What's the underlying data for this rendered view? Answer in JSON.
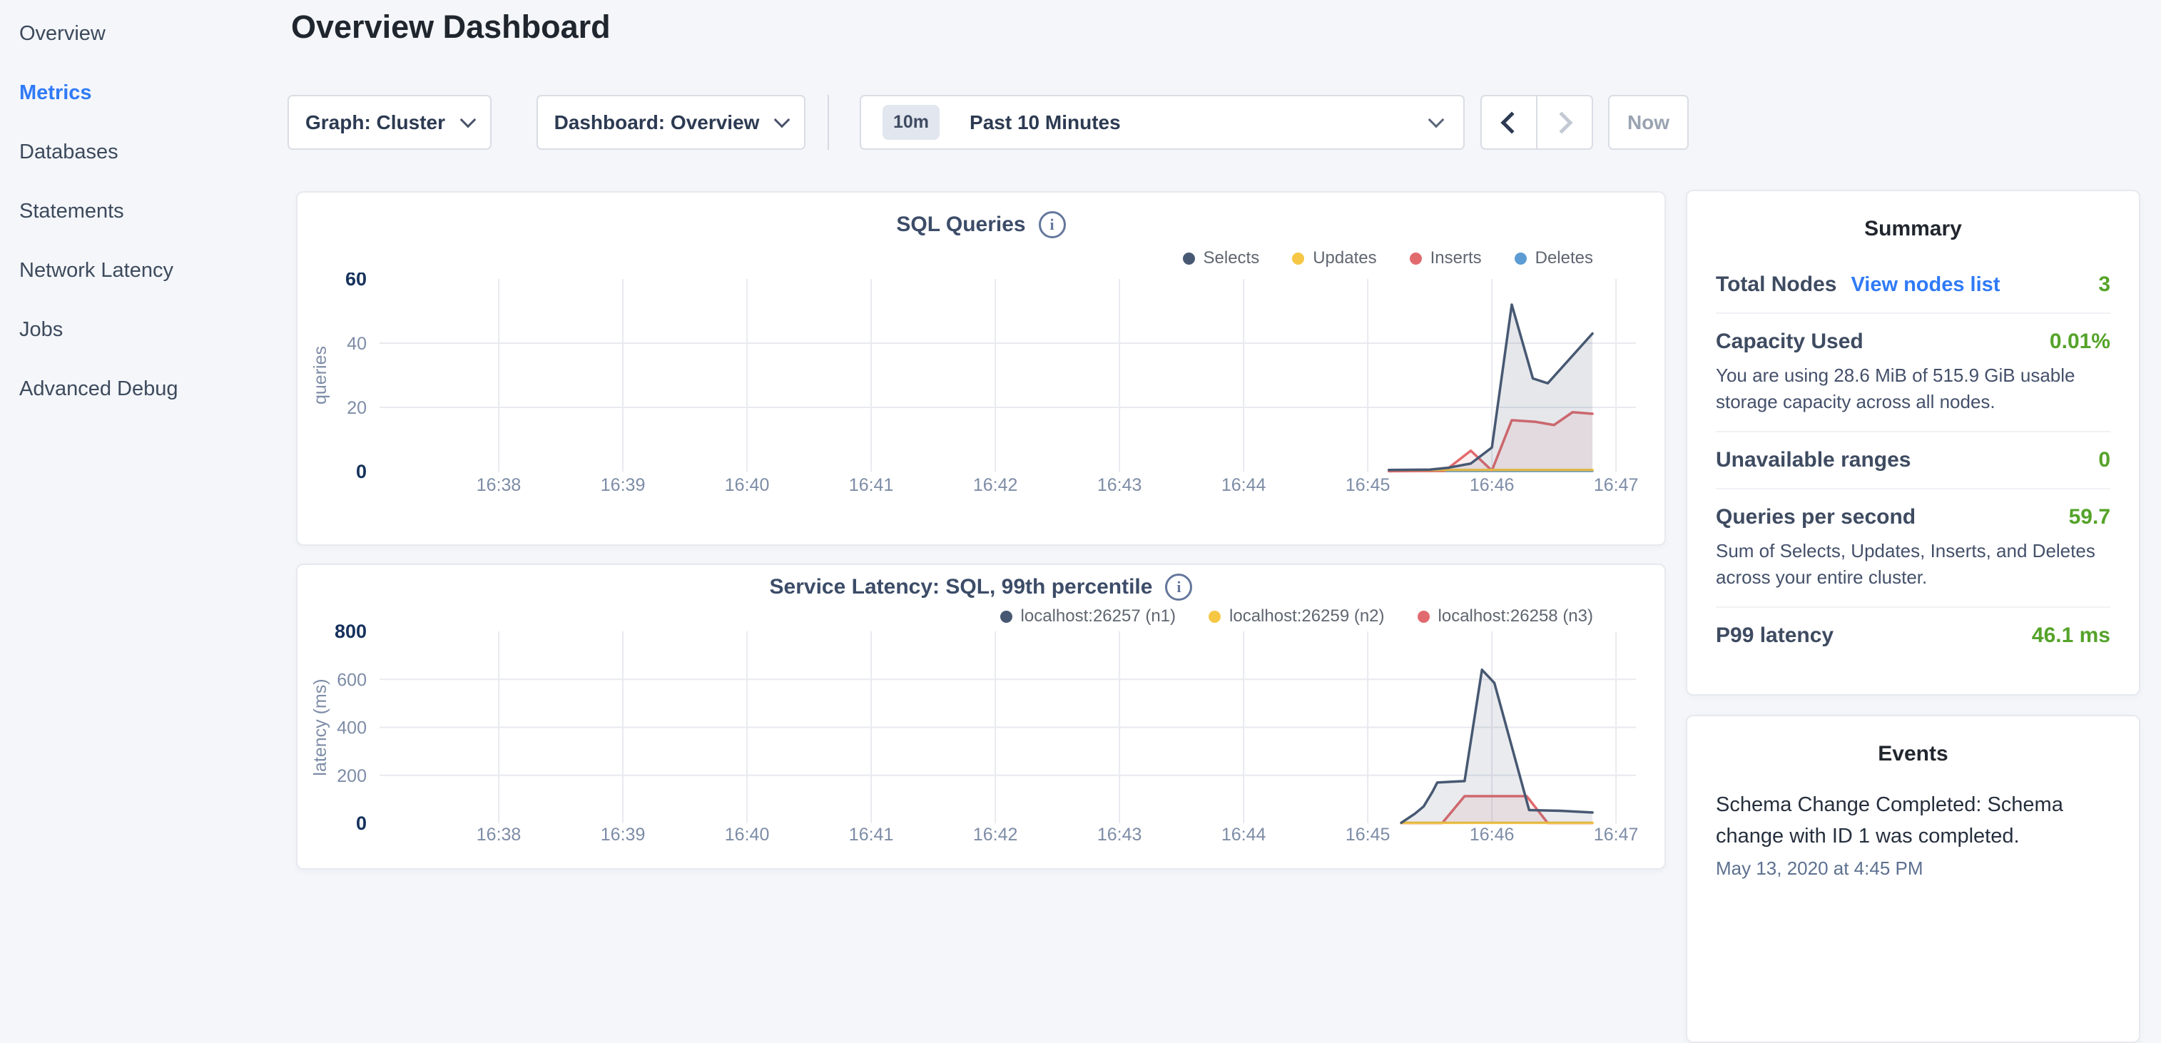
{
  "sidebar": {
    "items": [
      {
        "label": "Overview",
        "active": false
      },
      {
        "label": "Metrics",
        "active": true
      },
      {
        "label": "Databases",
        "active": false
      },
      {
        "label": "Statements",
        "active": false
      },
      {
        "label": "Network Latency",
        "active": false
      },
      {
        "label": "Jobs",
        "active": false
      },
      {
        "label": "Advanced Debug",
        "active": false
      }
    ]
  },
  "header": {
    "title": "Overview Dashboard"
  },
  "controls": {
    "graph_dropdown": {
      "label": "Graph: Cluster"
    },
    "dashboard_dropdown": {
      "label": "Dashboard: Overview"
    },
    "time_window": {
      "badge": "10m",
      "label": "Past 10 Minutes"
    },
    "now_button": {
      "label": "Now",
      "disabled": true
    },
    "prev_button": {
      "disabled": false
    },
    "next_button": {
      "disabled": true
    }
  },
  "colors": {
    "accent_blue": "#2f7af7",
    "value_green": "#55a32a",
    "series_navy": "#475872",
    "series_yellow": "#f6c744",
    "series_red": "#e16a6e",
    "series_blue": "#5c9cd3"
  },
  "chart_data": [
    {
      "type": "area",
      "title": "SQL Queries",
      "ylabel": "queries",
      "xlabel": "",
      "grid": true,
      "legend_position": "top-right",
      "x_range": [
        37.04,
        47.16
      ],
      "y_range": [
        0,
        60
      ],
      "y_ticks": [
        0,
        20,
        40,
        60
      ],
      "x_ticks": [
        {
          "v": 38,
          "label": "16:38"
        },
        {
          "v": 39,
          "label": "16:39"
        },
        {
          "v": 40,
          "label": "16:40"
        },
        {
          "v": 41,
          "label": "16:41"
        },
        {
          "v": 42,
          "label": "16:42"
        },
        {
          "v": 43,
          "label": "16:43"
        },
        {
          "v": 44,
          "label": "16:44"
        },
        {
          "v": 45,
          "label": "16:45"
        },
        {
          "v": 46,
          "label": "16:46"
        },
        {
          "v": 47,
          "label": "16:47"
        }
      ],
      "x_unit": "minutes after 16:00",
      "series": [
        {
          "name": "Selects",
          "color": "#475872",
          "fill": "rgba(71,88,114,0.14)",
          "points": [
            [
              45.17,
              0.5
            ],
            [
              45.5,
              0.6
            ],
            [
              45.65,
              1.2
            ],
            [
              45.83,
              2.5
            ],
            [
              46.0,
              7.5
            ],
            [
              46.16,
              52
            ],
            [
              46.33,
              29
            ],
            [
              46.45,
              27.5
            ],
            [
              46.81,
              43
            ]
          ]
        },
        {
          "name": "Updates",
          "color": "#f6c744",
          "fill": "none",
          "points": [
            [
              45.17,
              0.5
            ],
            [
              46.81,
              0.5
            ]
          ]
        },
        {
          "name": "Inserts",
          "color": "#e16a6e",
          "fill": "rgba(225,106,110,0.10)",
          "points": [
            [
              45.17,
              0.1
            ],
            [
              45.62,
              0.2
            ],
            [
              45.83,
              6.5
            ],
            [
              46.0,
              0.3
            ],
            [
              46.16,
              16
            ],
            [
              46.35,
              15.5
            ],
            [
              46.5,
              14.5
            ],
            [
              46.65,
              18.5
            ],
            [
              46.81,
              18
            ]
          ]
        },
        {
          "name": "Deletes",
          "color": "#5c9cd3",
          "fill": "none",
          "points": [
            [
              45.17,
              0.2
            ],
            [
              46.81,
              0.2
            ]
          ]
        }
      ]
    },
    {
      "type": "area",
      "title": "Service Latency: SQL, 99th percentile",
      "ylabel": "latency (ms)",
      "xlabel": "",
      "grid": true,
      "legend_position": "top-right",
      "x_range": [
        37.04,
        47.16
      ],
      "y_range": [
        0,
        800
      ],
      "y_ticks": [
        0,
        200,
        400,
        600,
        800
      ],
      "x_ticks": [
        {
          "v": 38,
          "label": "16:38"
        },
        {
          "v": 39,
          "label": "16:39"
        },
        {
          "v": 40,
          "label": "16:40"
        },
        {
          "v": 41,
          "label": "16:41"
        },
        {
          "v": 42,
          "label": "16:42"
        },
        {
          "v": 43,
          "label": "16:43"
        },
        {
          "v": 44,
          "label": "16:44"
        },
        {
          "v": 45,
          "label": "16:45"
        },
        {
          "v": 46,
          "label": "16:46"
        },
        {
          "v": 47,
          "label": "16:47"
        }
      ],
      "x_unit": "minutes after 16:00",
      "series": [
        {
          "name": "localhost:26257 (n1)",
          "color": "#475872",
          "fill": "rgba(71,88,114,0.12)",
          "points": [
            [
              45.27,
              2
            ],
            [
              45.38,
              40
            ],
            [
              45.45,
              70
            ],
            [
              45.52,
              130
            ],
            [
              45.56,
              170
            ],
            [
              45.78,
              176
            ],
            [
              45.92,
              640
            ],
            [
              46.02,
              585
            ],
            [
              46.3,
              55
            ],
            [
              46.55,
              52
            ],
            [
              46.81,
              45
            ]
          ]
        },
        {
          "name": "localhost:26259 (n2)",
          "color": "#f6c744",
          "fill": "none",
          "points": [
            [
              45.27,
              2
            ],
            [
              46.81,
              2
            ]
          ]
        },
        {
          "name": "localhost:26258 (n3)",
          "color": "#e16a6e",
          "fill": "rgba(225,106,110,0.10)",
          "points": [
            [
              45.27,
              1
            ],
            [
              45.6,
              1
            ],
            [
              45.78,
              113
            ],
            [
              46.28,
              113
            ],
            [
              46.45,
              1
            ],
            [
              46.81,
              1
            ]
          ]
        }
      ]
    }
  ],
  "summary": {
    "title": "Summary",
    "rows": [
      {
        "label": "Total Nodes",
        "link": "View nodes list",
        "value": "3"
      },
      {
        "label": "Capacity Used",
        "value": "0.01%",
        "desc": "You are using 28.6 MiB of 515.9 GiB usable storage capacity across all nodes."
      },
      {
        "label": "Unavailable ranges",
        "value": "0"
      },
      {
        "label": "Queries per second",
        "value": "59.7",
        "desc": "Sum of Selects, Updates, Inserts, and Deletes across your entire cluster."
      },
      {
        "label": "P99 latency",
        "value": "46.1 ms"
      }
    ]
  },
  "events": {
    "title": "Events",
    "items": [
      {
        "message": "Schema Change Completed: Schema change with ID 1 was completed.",
        "timestamp": "May 13, 2020 at 4:45 PM"
      }
    ]
  }
}
